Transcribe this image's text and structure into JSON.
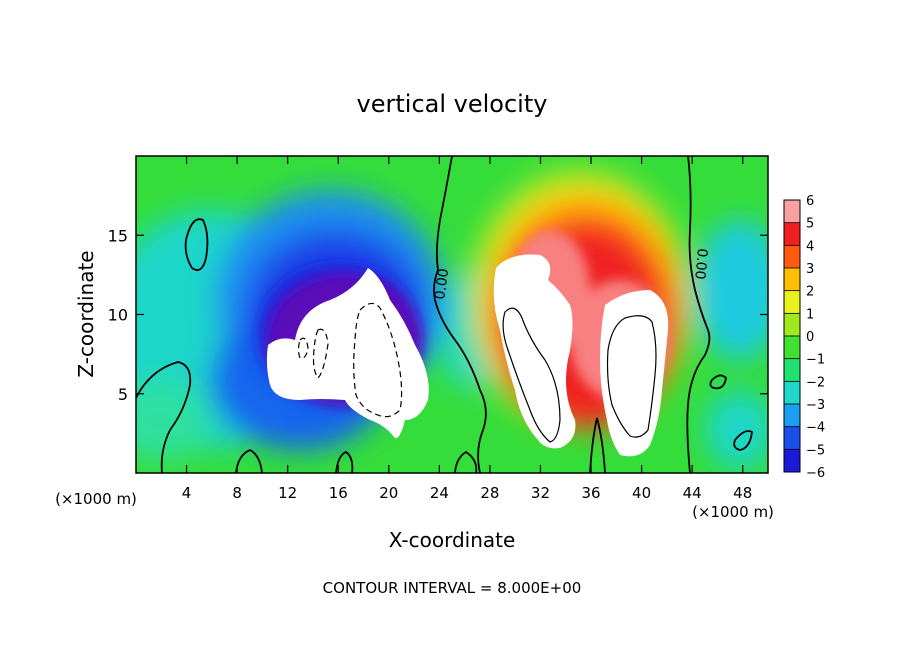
{
  "chart_data": {
    "type": "heatmap",
    "title": "vertical velocity",
    "xlabel": "X-coordinate",
    "ylabel": "Z-coordinate",
    "x_units_left": "(×1000 m)",
    "x_units_right": "(×1000 m)",
    "xlim": [
      0,
      50
    ],
    "ylim": [
      0,
      20
    ],
    "x_ticks": [
      4,
      8,
      12,
      16,
      20,
      24,
      28,
      32,
      36,
      40,
      44,
      48
    ],
    "y_ticks": [
      5,
      10,
      15
    ],
    "colorbar": {
      "levels": [
        6,
        5,
        4,
        3,
        2,
        1,
        0,
        -1,
        -2,
        -3,
        -4,
        -5,
        -6
      ],
      "labels": [
        "6",
        "5",
        "4",
        "3",
        "2",
        "1",
        "0",
        "−1",
        "−2",
        "−3",
        "−4",
        "−5",
        "−6"
      ]
    },
    "contour_labels": [
      "0.00",
      "0.00"
    ],
    "contour_interval_text": "CONTOUR INTERVAL = 8.000E+00",
    "features": [
      {
        "type": "downdraft",
        "center": [
          18,
          8.5
        ],
        "min_value": -6
      },
      {
        "type": "updraft",
        "center": [
          32,
          9
        ],
        "max_value": 6
      },
      {
        "type": "updraft",
        "center": [
          40,
          7.5
        ],
        "max_value": 6
      }
    ]
  }
}
